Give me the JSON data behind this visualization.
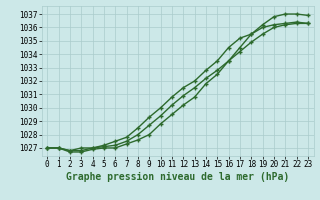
{
  "title": "Graphe pression niveau de la mer (hPa)",
  "x_values": [
    0,
    1,
    2,
    3,
    4,
    5,
    6,
    7,
    8,
    9,
    10,
    11,
    12,
    13,
    14,
    15,
    16,
    17,
    18,
    19,
    20,
    21,
    22,
    23
  ],
  "line1": [
    1027.0,
    1027.0,
    1026.8,
    1027.0,
    1027.0,
    1027.2,
    1027.5,
    1027.8,
    1028.5,
    1029.3,
    1030.0,
    1030.8,
    1031.5,
    1032.0,
    1032.8,
    1033.5,
    1034.5,
    1035.2,
    1035.5,
    1036.0,
    1036.2,
    1036.3,
    1036.4,
    1036.3
  ],
  "line2": [
    1027.0,
    1027.0,
    1026.7,
    1026.7,
    1026.9,
    1027.0,
    1027.0,
    1027.3,
    1027.6,
    1028.0,
    1028.8,
    1029.5,
    1030.2,
    1030.8,
    1031.8,
    1032.5,
    1033.5,
    1034.5,
    1035.5,
    1036.2,
    1036.8,
    1037.0,
    1037.0,
    1036.9
  ],
  "line3": [
    1027.0,
    1027.0,
    1026.8,
    1026.8,
    1027.0,
    1027.1,
    1027.2,
    1027.5,
    1028.0,
    1028.7,
    1029.4,
    1030.2,
    1030.9,
    1031.5,
    1032.2,
    1032.8,
    1033.5,
    1034.2,
    1034.9,
    1035.5,
    1036.0,
    1036.2,
    1036.3,
    1036.3
  ],
  "ylim": [
    1026.4,
    1037.6
  ],
  "xlim": [
    -0.5,
    23.5
  ],
  "yticks": [
    1027,
    1028,
    1029,
    1030,
    1031,
    1032,
    1033,
    1034,
    1035,
    1036,
    1037
  ],
  "xticks": [
    0,
    1,
    2,
    3,
    4,
    5,
    6,
    7,
    8,
    9,
    10,
    11,
    12,
    13,
    14,
    15,
    16,
    17,
    18,
    19,
    20,
    21,
    22,
    23
  ],
  "line_color": "#2d6a2d",
  "bg_color": "#cce8e8",
  "grid_color": "#aacccc",
  "marker": "+",
  "linewidth": 1.0,
  "markersize": 3.5,
  "fontsize_title": 7.0,
  "fontsize_ticks": 5.5
}
